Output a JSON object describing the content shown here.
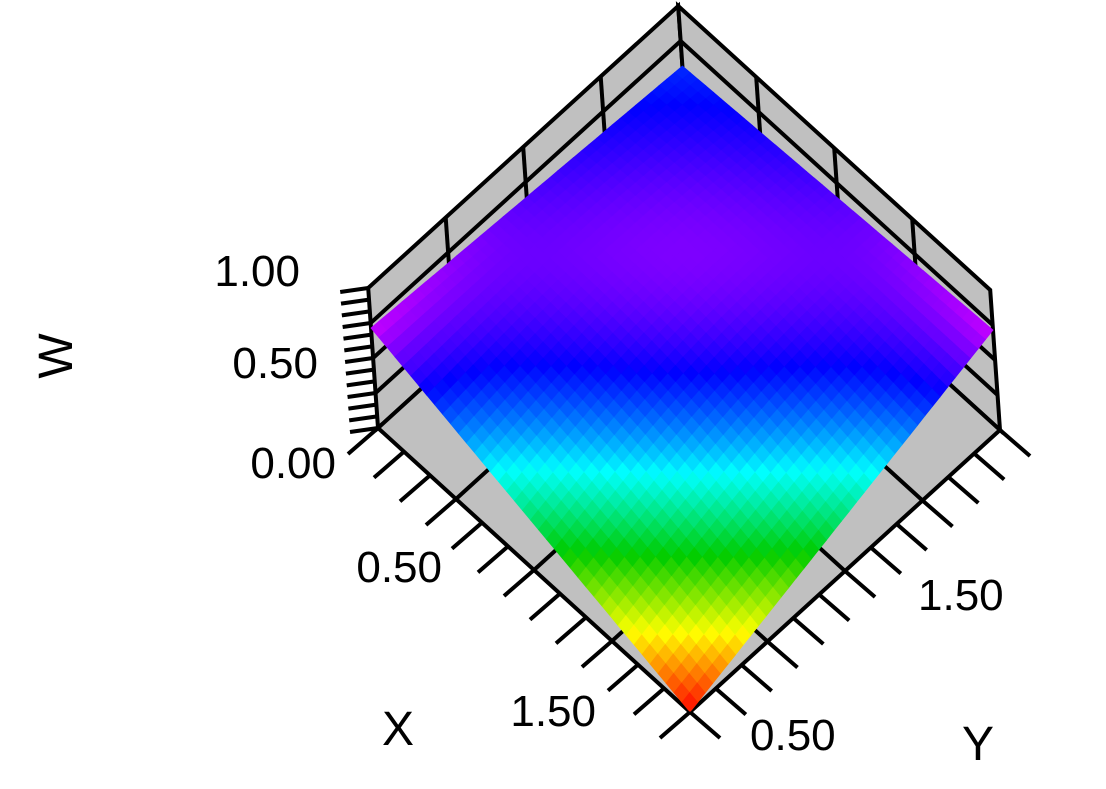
{
  "chart_data": {
    "type": "surface3d",
    "title": "",
    "xlabel": "X",
    "ylabel": "Y",
    "zlabel": "W",
    "x_ticks": [
      "0.50",
      "1.50"
    ],
    "y_ticks": [
      "0.50",
      "1.50"
    ],
    "z_ticks": [
      "0.00",
      "0.50",
      "1.00"
    ],
    "xlim": [
      0,
      2
    ],
    "ylim": [
      0,
      2
    ],
    "zlim": [
      0,
      1.4
    ],
    "colormap": [
      "#ff0000",
      "#ffff00",
      "#00cc00",
      "#00ffff",
      "#0000ff",
      "#ff00ff",
      "#ff0000"
    ],
    "wall_color": "#c0c0c0",
    "grid": true,
    "surface_corners": {
      "x0_y0": 0.0,
      "x2_y0": 1.0,
      "x0_y2": 1.0,
      "x2_y2": 0.8
    }
  }
}
